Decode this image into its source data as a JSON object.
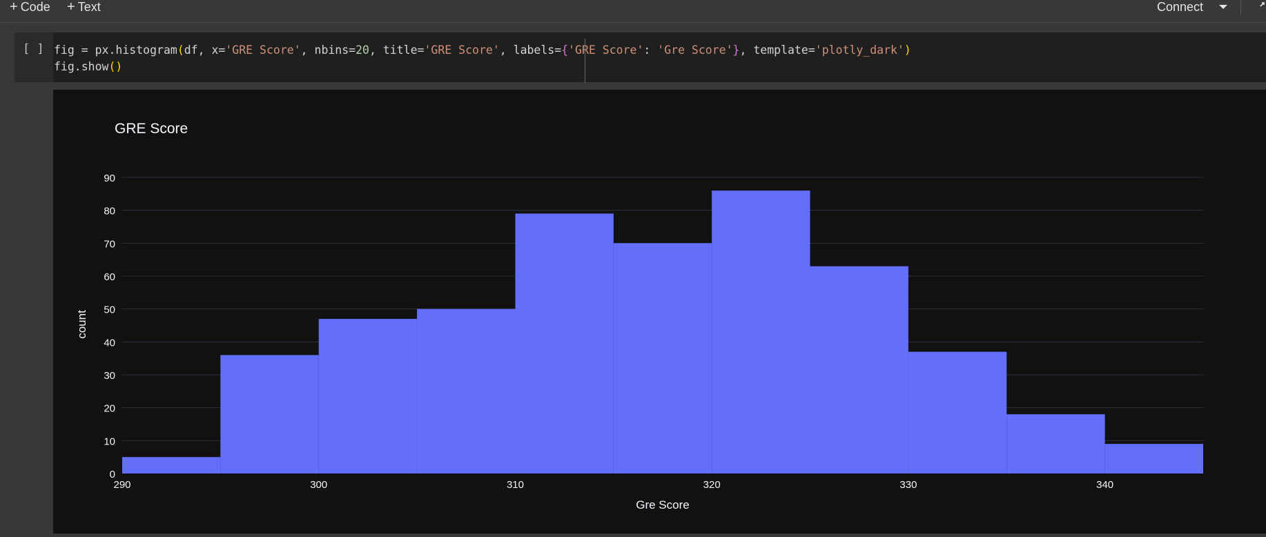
{
  "toolbar": {
    "code_label": "Code",
    "text_label": "Text",
    "connect_label": "Connect"
  },
  "cell": {
    "run_bracket": "[ ]",
    "code_line_1_parts": {
      "a": "fig = px.histogram",
      "paren_open": "(",
      "b": "df, x=",
      "s1": "'GRE Score'",
      "c": ", nbins=",
      "n1": "20",
      "d": ", title=",
      "s2": "'GRE Score'",
      "e": ", labels=",
      "brace_open": "{",
      "s3": "'GRE Score'",
      "f": ": ",
      "s4": "'Gre Score'",
      "brace_close": "}",
      "g": ", template=",
      "s5": "'plotly_dark'",
      "paren_close": ")"
    },
    "code_line_2_parts": {
      "a": "fig.show",
      "paren": "()"
    }
  },
  "colors": {
    "bar": "#636efa",
    "plot_bg": "#111111",
    "grid": "#283442",
    "text": "#f2f5fa"
  },
  "chart_data": {
    "type": "bar",
    "title": "GRE Score",
    "xlabel": "Gre Score",
    "ylabel": "count",
    "bins": [
      {
        "x0": 290,
        "x1": 295,
        "count": 5
      },
      {
        "x0": 295,
        "x1": 300,
        "count": 36
      },
      {
        "x0": 300,
        "x1": 305,
        "count": 47
      },
      {
        "x0": 305,
        "x1": 310,
        "count": 50
      },
      {
        "x0": 310,
        "x1": 315,
        "count": 79
      },
      {
        "x0": 315,
        "x1": 320,
        "count": 70
      },
      {
        "x0": 320,
        "x1": 325,
        "count": 86
      },
      {
        "x0": 325,
        "x1": 330,
        "count": 63
      },
      {
        "x0": 330,
        "x1": 335,
        "count": 37
      },
      {
        "x0": 335,
        "x1": 340,
        "count": 18
      },
      {
        "x0": 340,
        "x1": 345,
        "count": 9
      }
    ],
    "xlim": [
      290,
      345
    ],
    "ylim": [
      0,
      90
    ],
    "xticks": [
      290,
      300,
      310,
      320,
      330,
      340
    ],
    "yticks": [
      0,
      10,
      20,
      30,
      40,
      50,
      60,
      70,
      80,
      90
    ],
    "grid": true,
    "legend": "none"
  }
}
